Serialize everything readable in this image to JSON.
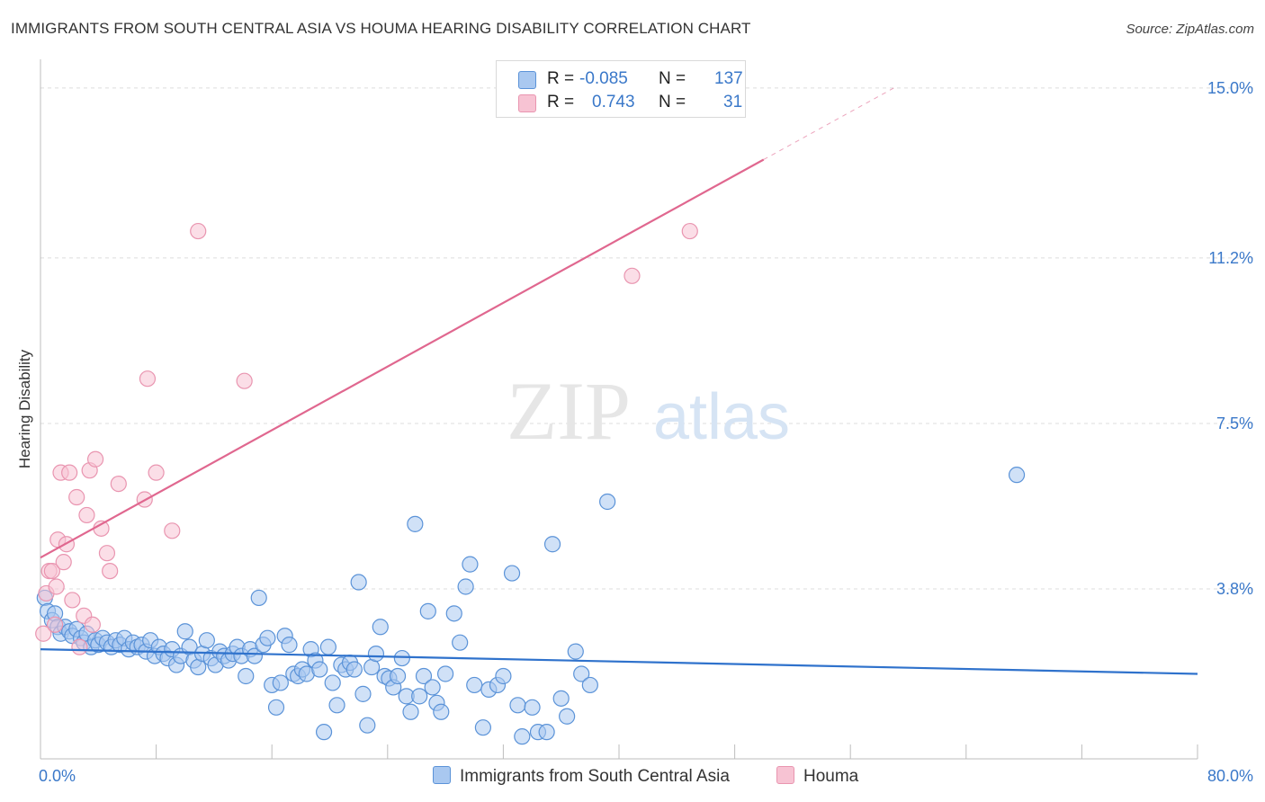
{
  "header": {
    "title": "IMMIGRANTS FROM SOUTH CENTRAL ASIA VS HOUMA HEARING DISABILITY CORRELATION CHART",
    "source": "Source: ZipAtlas.com"
  },
  "watermark": {
    "zip": "ZIP",
    "atlas": "atlas"
  },
  "legend": {
    "rows": [
      {
        "r_label": "R =",
        "r_value": "-0.085",
        "n_label": "N =",
        "n_value": "137"
      },
      {
        "r_label": "R =",
        "r_value": "0.743",
        "n_label": "N =",
        "n_value": "31"
      }
    ]
  },
  "bottom_legend": [
    {
      "label": "Immigrants from South Central Asia"
    },
    {
      "label": "Houma"
    }
  ],
  "chart_data": {
    "type": "scatter",
    "ylabel": "Hearing Disability",
    "xlim": [
      0,
      80
    ],
    "ylim": [
      0,
      15.4
    ],
    "x_tick_labels": [
      {
        "x": 0,
        "label": "0.0%"
      },
      {
        "x": 80,
        "label": "80.0%"
      }
    ],
    "y_tick_labels": [
      {
        "y": 3.8,
        "label": "3.8%"
      },
      {
        "y": 7.5,
        "label": "7.5%"
      },
      {
        "y": 11.2,
        "label": "11.2%"
      },
      {
        "y": 15.0,
        "label": "15.0%"
      }
    ],
    "grid": true,
    "colors": {
      "blue_fill": "#a9c8f0",
      "blue_stroke": "#5b93d8",
      "blue_line": "#2f72cc",
      "pink_fill": "#f7c3d3",
      "pink_stroke": "#e995b0",
      "pink_line": "#e0678f",
      "tick_label": "#3a78c9"
    },
    "series": [
      {
        "name": "Immigrants from South Central Asia",
        "r": -0.085,
        "n": 137,
        "trend": {
          "x": [
            0,
            80
          ],
          "y": [
            2.45,
            1.9
          ]
        },
        "points": [
          [
            0.3,
            3.6
          ],
          [
            0.5,
            3.3
          ],
          [
            0.8,
            3.1
          ],
          [
            1.0,
            3.25
          ],
          [
            1.2,
            2.95
          ],
          [
            1.4,
            2.8
          ],
          [
            1.7,
            2.95
          ],
          [
            2.0,
            2.85
          ],
          [
            2.2,
            2.75
          ],
          [
            2.5,
            2.9
          ],
          [
            2.8,
            2.7
          ],
          [
            3.0,
            2.6
          ],
          [
            3.2,
            2.8
          ],
          [
            3.5,
            2.5
          ],
          [
            3.8,
            2.65
          ],
          [
            4.0,
            2.55
          ],
          [
            4.3,
            2.7
          ],
          [
            4.6,
            2.6
          ],
          [
            4.9,
            2.5
          ],
          [
            5.2,
            2.65
          ],
          [
            5.5,
            2.55
          ],
          [
            5.8,
            2.7
          ],
          [
            6.1,
            2.45
          ],
          [
            6.4,
            2.6
          ],
          [
            6.7,
            2.5
          ],
          [
            7.0,
            2.55
          ],
          [
            7.3,
            2.4
          ],
          [
            7.6,
            2.65
          ],
          [
            7.9,
            2.3
          ],
          [
            8.2,
            2.5
          ],
          [
            8.5,
            2.35
          ],
          [
            8.8,
            2.25
          ],
          [
            9.1,
            2.45
          ],
          [
            9.4,
            2.1
          ],
          [
            9.7,
            2.3
          ],
          [
            10.0,
            2.85
          ],
          [
            10.3,
            2.5
          ],
          [
            10.6,
            2.2
          ],
          [
            10.9,
            2.05
          ],
          [
            11.2,
            2.35
          ],
          [
            11.5,
            2.65
          ],
          [
            11.8,
            2.25
          ],
          [
            12.1,
            2.1
          ],
          [
            12.4,
            2.4
          ],
          [
            12.7,
            2.3
          ],
          [
            13.0,
            2.2
          ],
          [
            13.3,
            2.35
          ],
          [
            13.6,
            2.5
          ],
          [
            13.9,
            2.3
          ],
          [
            14.2,
            1.85
          ],
          [
            14.5,
            2.45
          ],
          [
            14.8,
            2.3
          ],
          [
            15.1,
            3.6
          ],
          [
            15.4,
            2.55
          ],
          [
            15.7,
            2.7
          ],
          [
            16.0,
            1.65
          ],
          [
            16.3,
            1.15
          ],
          [
            16.6,
            1.7
          ],
          [
            16.9,
            2.75
          ],
          [
            17.2,
            2.55
          ],
          [
            17.5,
            1.9
          ],
          [
            17.8,
            1.85
          ],
          [
            18.1,
            2.0
          ],
          [
            18.4,
            1.9
          ],
          [
            18.7,
            2.45
          ],
          [
            19.0,
            2.2
          ],
          [
            19.3,
            2.0
          ],
          [
            19.6,
            0.6
          ],
          [
            19.9,
            2.5
          ],
          [
            20.2,
            1.7
          ],
          [
            20.5,
            1.2
          ],
          [
            20.8,
            2.1
          ],
          [
            21.1,
            2.0
          ],
          [
            21.4,
            2.15
          ],
          [
            21.7,
            2.0
          ],
          [
            22.0,
            3.95
          ],
          [
            22.3,
            1.45
          ],
          [
            22.6,
            0.75
          ],
          [
            22.9,
            2.05
          ],
          [
            23.2,
            2.35
          ],
          [
            23.5,
            2.95
          ],
          [
            23.8,
            1.85
          ],
          [
            24.1,
            1.8
          ],
          [
            24.4,
            1.6
          ],
          [
            24.7,
            1.85
          ],
          [
            25.0,
            2.25
          ],
          [
            25.3,
            1.4
          ],
          [
            25.6,
            1.05
          ],
          [
            25.9,
            5.25
          ],
          [
            26.2,
            1.4
          ],
          [
            26.5,
            1.85
          ],
          [
            26.8,
            3.3
          ],
          [
            27.1,
            1.6
          ],
          [
            27.4,
            1.25
          ],
          [
            27.7,
            1.05
          ],
          [
            28.0,
            1.9
          ],
          [
            28.6,
            3.25
          ],
          [
            29.0,
            2.6
          ],
          [
            29.4,
            3.85
          ],
          [
            29.7,
            4.35
          ],
          [
            30.0,
            1.65
          ],
          [
            30.6,
            0.7
          ],
          [
            31.0,
            1.55
          ],
          [
            31.6,
            1.65
          ],
          [
            32.0,
            1.85
          ],
          [
            32.6,
            4.15
          ],
          [
            33.0,
            1.2
          ],
          [
            33.3,
            0.5
          ],
          [
            34.0,
            1.15
          ],
          [
            34.4,
            0.6
          ],
          [
            35.0,
            0.6
          ],
          [
            35.4,
            4.8
          ],
          [
            36.0,
            1.35
          ],
          [
            36.4,
            0.95
          ],
          [
            37.0,
            2.4
          ],
          [
            37.4,
            1.9
          ],
          [
            38.0,
            1.65
          ],
          [
            39.2,
            5.75
          ],
          [
            67.5,
            6.35
          ]
        ]
      },
      {
        "name": "Houma",
        "r": 0.743,
        "n": 31,
        "trend": {
          "x": [
            0,
            50
          ],
          "y": [
            4.5,
            13.4
          ]
        },
        "trend_dashed_extension": {
          "x": [
            50,
            59
          ],
          "y": [
            13.4,
            15.0
          ]
        },
        "points": [
          [
            0.2,
            2.8
          ],
          [
            0.4,
            3.7
          ],
          [
            0.6,
            4.2
          ],
          [
            0.8,
            4.2
          ],
          [
            1.0,
            3.0
          ],
          [
            1.1,
            3.85
          ],
          [
            1.2,
            4.9
          ],
          [
            1.4,
            6.4
          ],
          [
            1.6,
            4.4
          ],
          [
            1.8,
            4.8
          ],
          [
            2.0,
            6.4
          ],
          [
            2.2,
            3.55
          ],
          [
            2.5,
            5.85
          ],
          [
            2.7,
            2.5
          ],
          [
            3.0,
            3.2
          ],
          [
            3.2,
            5.45
          ],
          [
            3.4,
            6.45
          ],
          [
            3.6,
            3.0
          ],
          [
            3.8,
            6.7
          ],
          [
            4.2,
            5.15
          ],
          [
            4.6,
            4.6
          ],
          [
            4.8,
            4.2
          ],
          [
            5.4,
            6.15
          ],
          [
            7.2,
            5.8
          ],
          [
            7.4,
            8.5
          ],
          [
            8.0,
            6.4
          ],
          [
            9.1,
            5.1
          ],
          [
            10.9,
            11.8
          ],
          [
            14.1,
            8.45
          ],
          [
            40.9,
            10.8
          ],
          [
            44.9,
            11.8
          ]
        ]
      }
    ]
  }
}
